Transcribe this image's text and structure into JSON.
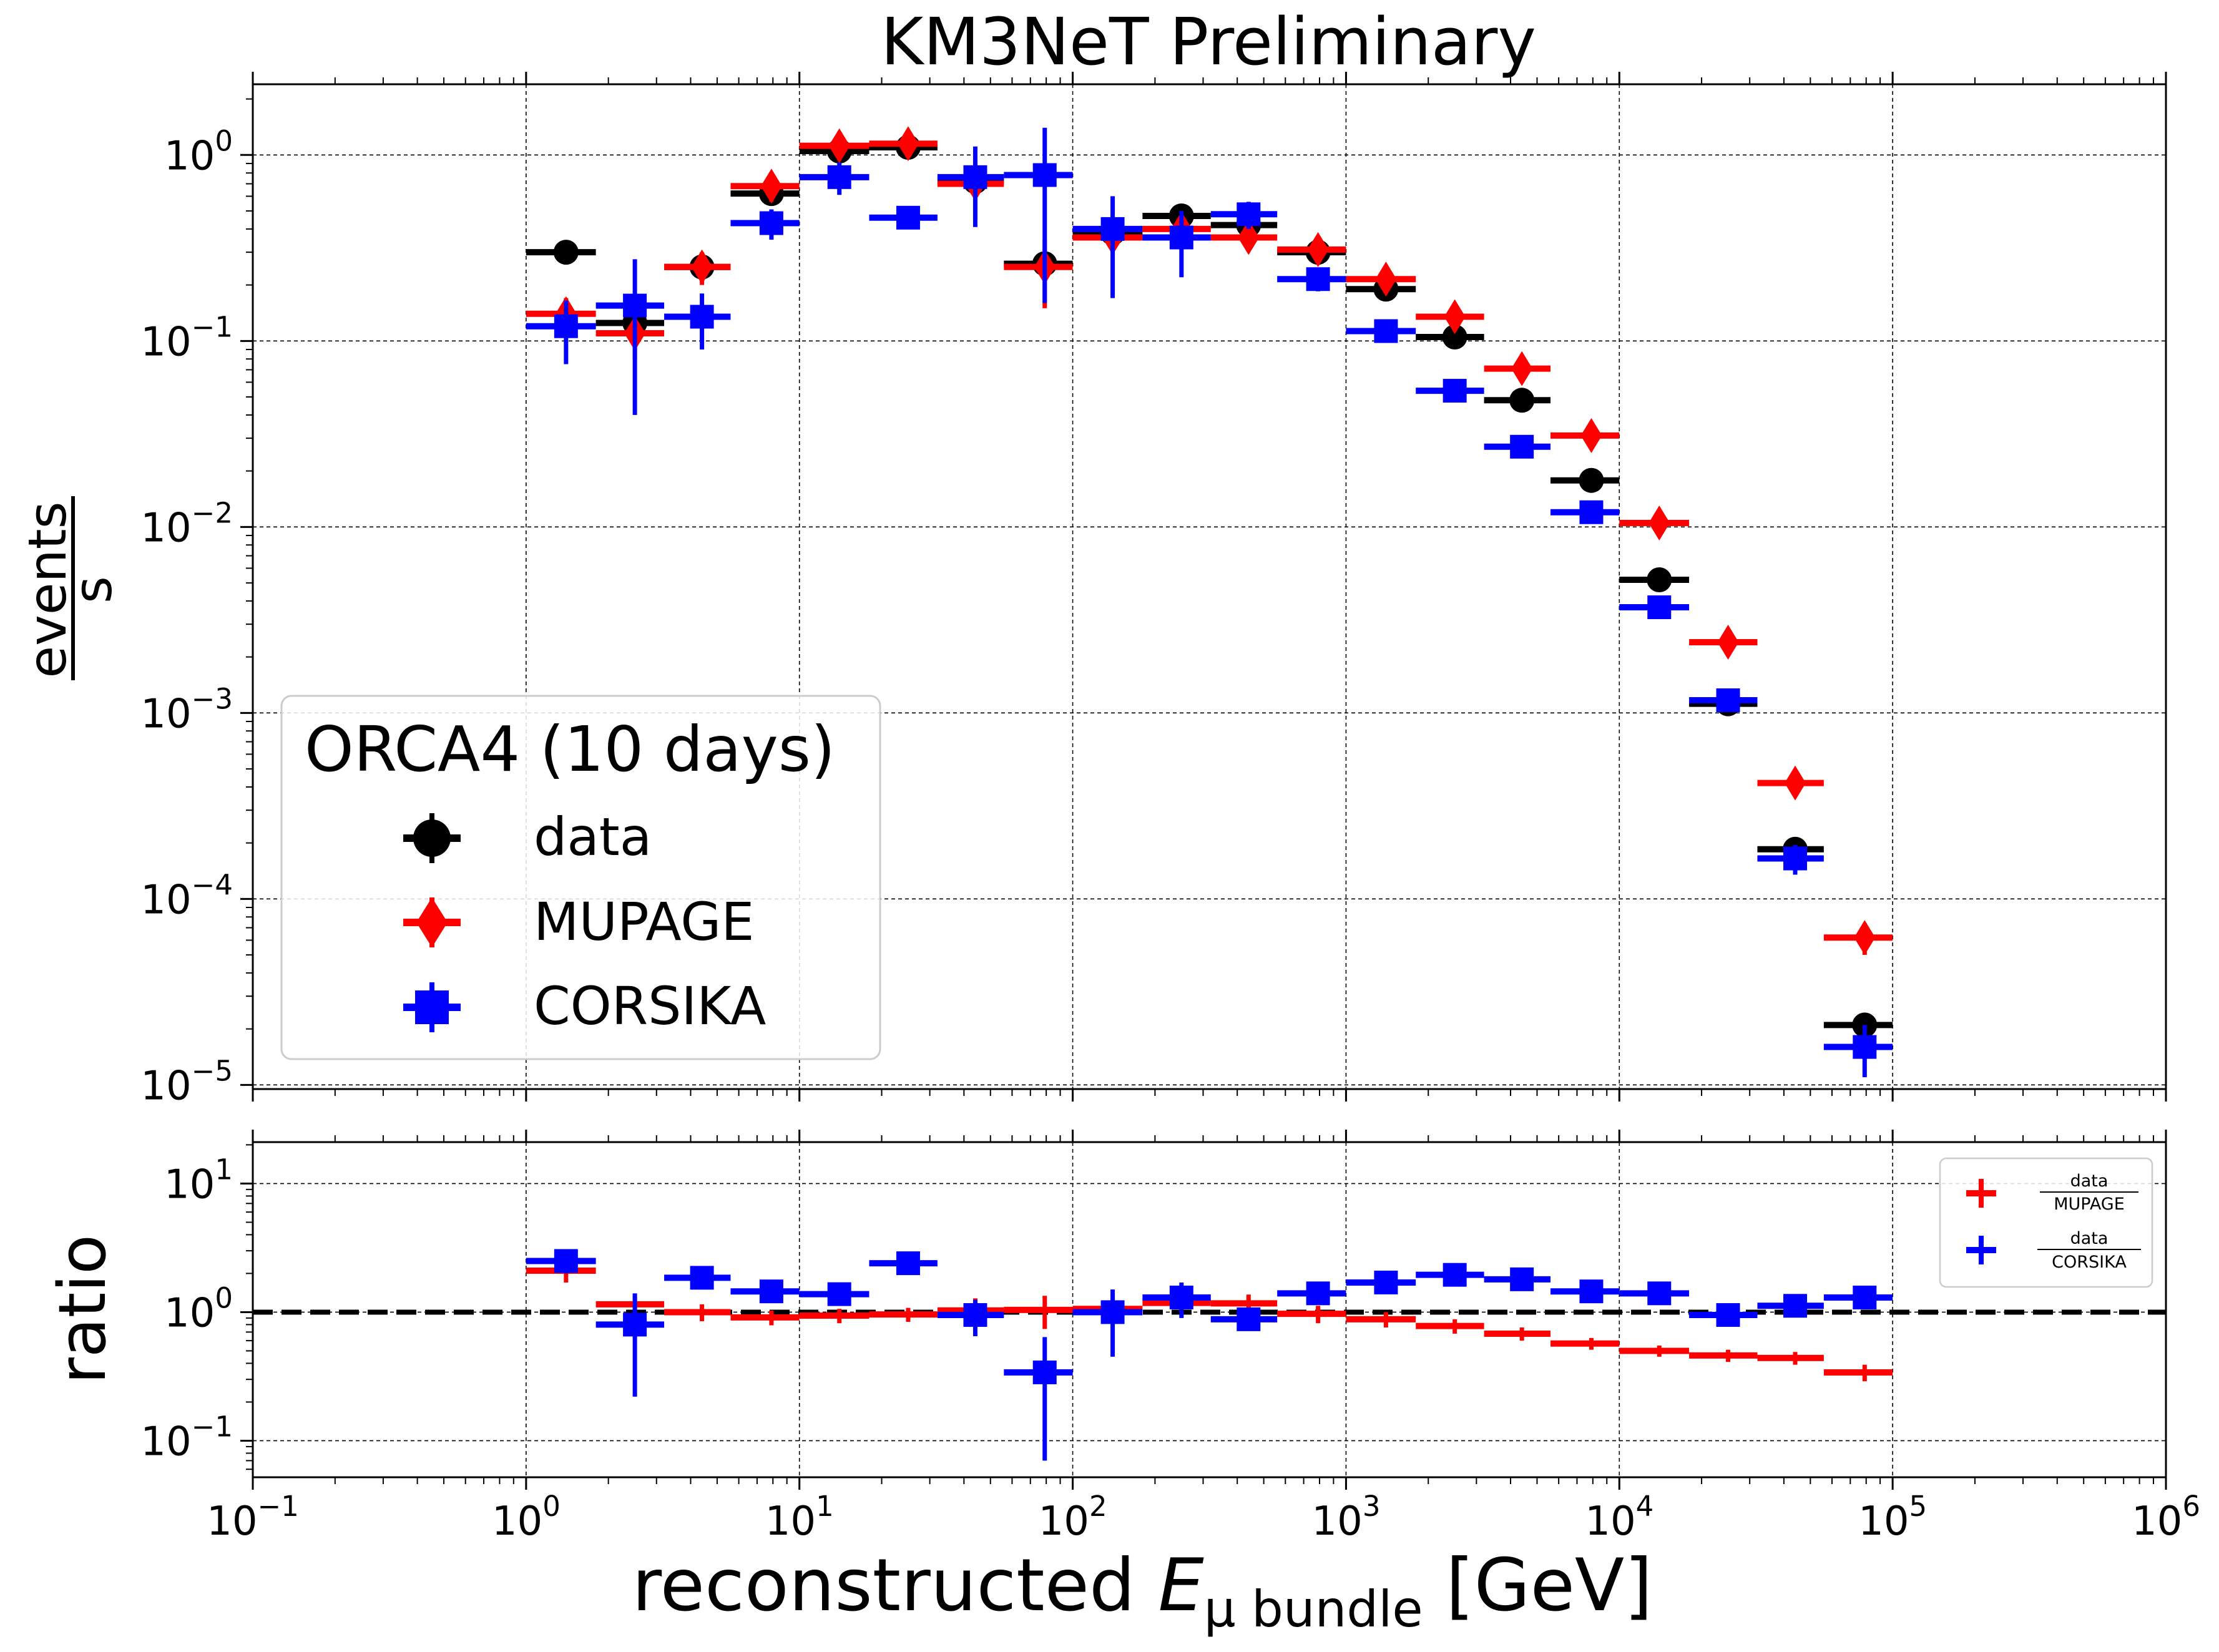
{
  "chart_data": {
    "type": "scatter",
    "title": "KM3NeT Preliminary",
    "xlabel": {
      "prefix": "reconstructed ",
      "symbol": "E",
      "subscript": "μ bundle",
      "unit": " [GeV]"
    },
    "xscale": "log",
    "xlim": [
      0.1,
      1000000
    ],
    "x_bin_centers": [
      1.4,
      2.5,
      4.4,
      7.9,
      14,
      25,
      44,
      79,
      140,
      250,
      440,
      790,
      1400,
      2500,
      4400,
      7900,
      14000,
      25000,
      44000,
      79000
    ],
    "x_bin_edges": [
      1,
      1.8,
      3.2,
      5.6,
      10,
      18,
      32,
      56,
      100,
      180,
      320,
      560,
      1000,
      1800,
      3200,
      5600,
      10000,
      18000,
      32000,
      56000,
      100000
    ],
    "xtick_labels": [
      {
        "base": "10",
        "exp": "−1"
      },
      {
        "base": "10",
        "exp": "0"
      },
      {
        "base": "10",
        "exp": "1"
      },
      {
        "base": "10",
        "exp": "2"
      },
      {
        "base": "10",
        "exp": "3"
      },
      {
        "base": "10",
        "exp": "4"
      },
      {
        "base": "10",
        "exp": "5"
      },
      {
        "base": "10",
        "exp": "6"
      }
    ],
    "main_panel": {
      "ylabel": {
        "numerator": "events",
        "denominator": "s"
      },
      "yscale": "log",
      "ylim": [
        9.5e-06,
        2.4
      ],
      "ytick_labels": [
        {
          "base": "10",
          "exp": "−5"
        },
        {
          "base": "10",
          "exp": "−4"
        },
        {
          "base": "10",
          "exp": "−3"
        },
        {
          "base": "10",
          "exp": "−2"
        },
        {
          "base": "10",
          "exp": "−1"
        },
        {
          "base": "10",
          "exp": "0"
        }
      ],
      "legend": {
        "title": "ORCA4 (10 days)",
        "location": "lower-left"
      },
      "series": [
        {
          "name": "data",
          "marker": "circle",
          "color": "#000000",
          "values": [
            0.3,
            0.125,
            0.25,
            0.62,
            1.05,
            1.1,
            0.72,
            0.26,
            0.38,
            0.47,
            0.42,
            0.3,
            0.19,
            0.105,
            0.048,
            0.0178,
            0.0052,
            0.00112,
            0.000185,
            2.1e-05
          ],
          "err_low": [
            0.03,
            0.02,
            0.03,
            0.06,
            0.1,
            0.1,
            0.07,
            0.03,
            0.04,
            0.05,
            0.04,
            0.03,
            0.02,
            0.01,
            0.004,
            0.0015,
            0.0004,
            0.0001,
            2e-05,
            3e-06
          ],
          "err_high": [
            0.03,
            0.02,
            0.03,
            0.06,
            0.1,
            0.1,
            0.07,
            0.03,
            0.04,
            0.05,
            0.04,
            0.03,
            0.02,
            0.01,
            0.004,
            0.0015,
            0.0004,
            0.0001,
            2e-05,
            3e-06
          ]
        },
        {
          "name": "MUPAGE",
          "marker": "diamond",
          "color": "#ff0000",
          "values": [
            0.14,
            0.11,
            0.25,
            0.68,
            1.12,
            1.15,
            0.7,
            0.25,
            0.36,
            0.4,
            0.36,
            0.31,
            0.215,
            0.135,
            0.071,
            0.031,
            0.0105,
            0.0024,
            0.00042,
            6.2e-05
          ],
          "err_low": [
            0.03,
            0.03,
            0.05,
            0.12,
            0.15,
            0.15,
            0.25,
            0.1,
            0.06,
            0.06,
            0.05,
            0.04,
            0.03,
            0.02,
            0.01,
            0.004,
            0.0013,
            0.0003,
            6e-05,
            1.2e-05
          ],
          "err_high": [
            0.03,
            0.03,
            0.05,
            0.12,
            0.15,
            0.15,
            0.25,
            0.1,
            0.06,
            0.06,
            0.05,
            0.04,
            0.03,
            0.02,
            0.01,
            0.004,
            0.0013,
            0.0003,
            6e-05,
            1.2e-05
          ]
        },
        {
          "name": "CORSIKA",
          "marker": "square",
          "color": "#0000ff",
          "values": [
            0.12,
            0.155,
            0.135,
            0.43,
            0.76,
            0.46,
            0.76,
            0.78,
            0.4,
            0.36,
            0.48,
            0.215,
            0.113,
            0.054,
            0.027,
            0.012,
            0.0037,
            0.00117,
            0.000165,
            1.6e-05
          ],
          "err_low": [
            0.045,
            0.115,
            0.045,
            0.08,
            0.15,
            0.06,
            0.35,
            0.62,
            0.23,
            0.14,
            0.08,
            0.03,
            0.012,
            0.006,
            0.003,
            0.0015,
            0.0005,
            0.00015,
            3e-05,
            5e-06
          ],
          "err_high": [
            0.045,
            0.12,
            0.045,
            0.08,
            0.15,
            0.06,
            0.35,
            0.62,
            0.2,
            0.14,
            0.08,
            0.03,
            0.012,
            0.006,
            0.003,
            0.0015,
            0.0005,
            0.00015,
            3e-05,
            5e-06
          ]
        }
      ]
    },
    "ratio_panel": {
      "ylabel": "ratio",
      "yscale": "log",
      "ylim": [
        0.052,
        21
      ],
      "ytick_labels": [
        {
          "base": "10",
          "exp": "−1"
        },
        {
          "base": "10",
          "exp": "0"
        },
        {
          "base": "10",
          "exp": "1"
        }
      ],
      "reference_line": 1.0,
      "legend": {
        "location": "top-right"
      },
      "series": [
        {
          "name_numerator": "data",
          "name_denominator": "MUPAGE",
          "marker": "plus",
          "color": "#ff0000",
          "values": [
            2.1,
            1.15,
            1.0,
            0.91,
            0.94,
            0.96,
            1.03,
            1.04,
            1.06,
            1.18,
            1.17,
            0.97,
            0.88,
            0.78,
            0.68,
            0.57,
            0.5,
            0.46,
            0.44,
            0.34
          ],
          "err_low": [
            0.4,
            0.2,
            0.15,
            0.12,
            0.12,
            0.12,
            0.25,
            0.3,
            0.2,
            0.2,
            0.2,
            0.15,
            0.12,
            0.1,
            0.08,
            0.06,
            0.05,
            0.05,
            0.05,
            0.05
          ],
          "err_high": [
            0.4,
            0.2,
            0.15,
            0.12,
            0.12,
            0.12,
            0.25,
            0.3,
            0.2,
            0.2,
            0.2,
            0.15,
            0.12,
            0.1,
            0.08,
            0.06,
            0.05,
            0.05,
            0.05,
            0.05
          ]
        },
        {
          "name_numerator": "data",
          "name_denominator": "CORSIKA",
          "marker": "plus",
          "color": "#0000ff",
          "values": [
            2.5,
            0.8,
            1.85,
            1.45,
            1.38,
            2.4,
            0.95,
            0.34,
            1.0,
            1.3,
            0.88,
            1.4,
            1.7,
            1.95,
            1.8,
            1.45,
            1.4,
            0.95,
            1.12,
            1.3
          ],
          "err_low": [
            0.5,
            0.58,
            0.3,
            0.2,
            0.25,
            0.3,
            0.3,
            0.27,
            0.55,
            0.4,
            0.15,
            0.2,
            0.2,
            0.2,
            0.2,
            0.15,
            0.15,
            0.1,
            0.12,
            0.15
          ],
          "err_high": [
            0.5,
            0.6,
            0.3,
            0.2,
            0.25,
            0.3,
            0.3,
            0.3,
            0.5,
            0.4,
            0.15,
            0.2,
            0.2,
            0.2,
            0.2,
            0.15,
            0.15,
            0.1,
            0.12,
            0.15
          ]
        }
      ]
    }
  }
}
